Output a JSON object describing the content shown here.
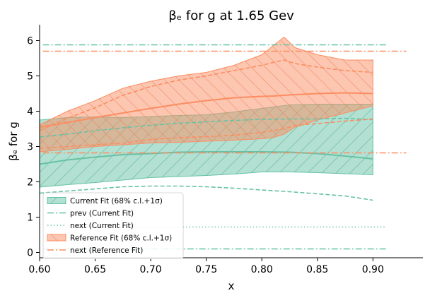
{
  "chart_data": {
    "type": "line",
    "title": "βₑ for g at 1.65 Gev",
    "xlabel": "x",
    "ylabel": "βₑ for g",
    "xlim": [
      0.6,
      0.945
    ],
    "ylim": [
      -0.15,
      6.45
    ],
    "xticks": [
      "0.60",
      "0.65",
      "0.70",
      "0.75",
      "0.80",
      "0.85",
      "0.90"
    ],
    "yticks": [
      "0",
      "1",
      "2",
      "3",
      "4",
      "5",
      "6"
    ],
    "grid": false,
    "legend_position": "lower-left",
    "colors": {
      "current": "#66c2a5",
      "reference": "#fc8d62"
    },
    "current_fit": {
      "x": [
        0.6,
        0.625,
        0.65,
        0.675,
        0.7,
        0.725,
        0.75,
        0.775,
        0.8,
        0.825,
        0.85,
        0.875,
        0.9
      ],
      "central": [
        2.5,
        2.62,
        2.7,
        2.77,
        2.8,
        2.84,
        2.85,
        2.85,
        2.85,
        2.84,
        2.8,
        2.73,
        2.65
      ],
      "lower": [
        1.85,
        1.92,
        1.98,
        2.05,
        2.12,
        2.15,
        2.18,
        2.22,
        2.28,
        2.28,
        2.26,
        2.23,
        2.2
      ],
      "upper": [
        3.75,
        3.82,
        3.84,
        3.82,
        3.85,
        3.88,
        3.9,
        3.98,
        4.08,
        4.18,
        4.2,
        4.2,
        4.2
      ],
      "next_dashed": [
        1.68,
        1.74,
        1.8,
        1.86,
        1.88,
        1.88,
        1.86,
        1.82,
        1.77,
        1.72,
        1.66,
        1.6,
        1.48
      ],
      "next_dashed_upper": [
        3.27,
        3.35,
        3.45,
        3.53,
        3.6,
        3.66,
        3.7,
        3.74,
        3.77,
        3.78,
        3.78,
        3.8,
        3.76
      ]
    },
    "reference_fit": {
      "x": [
        0.6,
        0.625,
        0.65,
        0.675,
        0.7,
        0.725,
        0.75,
        0.775,
        0.8,
        0.81,
        0.82,
        0.83,
        0.85,
        0.875,
        0.9
      ],
      "central": [
        3.55,
        3.68,
        3.82,
        3.95,
        4.08,
        4.2,
        4.3,
        4.38,
        4.42,
        4.43,
        4.45,
        4.47,
        4.5,
        4.52,
        4.5
      ],
      "lower": [
        2.85,
        2.92,
        3.0,
        3.05,
        3.1,
        3.12,
        3.15,
        3.18,
        3.22,
        3.25,
        3.35,
        3.55,
        3.75,
        3.95,
        4.15
      ],
      "upper": [
        3.62,
        4.0,
        4.3,
        4.65,
        4.85,
        5.0,
        5.1,
        5.3,
        5.6,
        5.85,
        6.1,
        5.8,
        5.6,
        5.45,
        5.45
      ],
      "dashed_upper": [
        3.45,
        3.8,
        4.1,
        4.45,
        4.7,
        4.88,
        5.0,
        5.15,
        5.3,
        5.38,
        5.45,
        5.35,
        5.25,
        5.15,
        5.1
      ],
      "dashed_lower": [
        2.95,
        3.0,
        3.05,
        3.1,
        3.2,
        3.25,
        3.28,
        3.32,
        3.4,
        3.45,
        3.5,
        3.6,
        3.65,
        3.72,
        3.78
      ]
    },
    "reference_lines": [
      {
        "name": "current_top",
        "y": 5.88,
        "series": "current",
        "style": "dashdot"
      },
      {
        "name": "reference_top",
        "y": 5.7,
        "series": "reference",
        "style": "dashdot"
      },
      {
        "name": "reference_mid",
        "y": 2.82,
        "series": "reference",
        "style": "dashdot"
      },
      {
        "name": "current_dotted",
        "y": 0.72,
        "series": "current",
        "style": "dotted"
      },
      {
        "name": "current_bottom",
        "y": 0.1,
        "series": "current",
        "style": "dashdot"
      }
    ],
    "legend": [
      {
        "label": "Current Fit (68% c.l.+1σ)",
        "kind": "patch",
        "series": "current"
      },
      {
        "label": "prev (Current Fit)",
        "kind": "dashdot",
        "series": "current"
      },
      {
        "label": "next (Current Fit)",
        "kind": "dotted",
        "series": "current"
      },
      {
        "label": "Reference Fit (68% c.l.+1σ)",
        "kind": "patch",
        "series": "reference"
      },
      {
        "label": "next (Reference Fit)",
        "kind": "dashdot",
        "series": "reference"
      }
    ]
  }
}
